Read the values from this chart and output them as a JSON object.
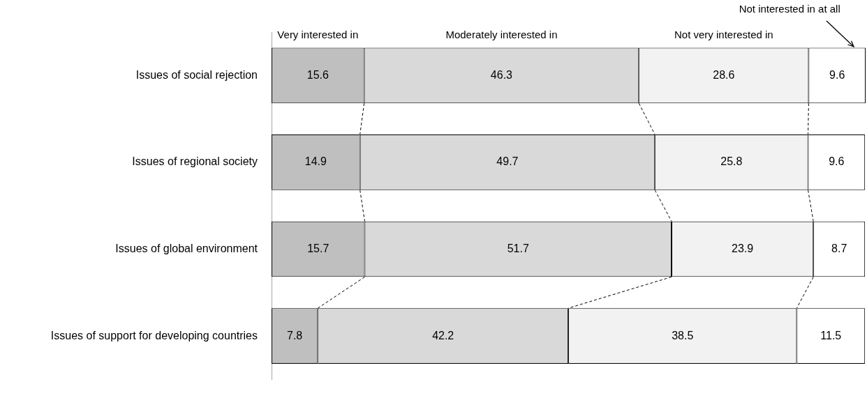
{
  "chart_data": {
    "type": "bar",
    "orientation": "horizontal",
    "stacked": true,
    "categories": [
      "Issues of social rejection",
      "Issues of regional society",
      "Issues of global environment",
      "Issues of support for developing countries"
    ],
    "series": [
      {
        "name": "Very interested in",
        "color": "#bfbfbf",
        "values": [
          15.6,
          14.9,
          15.7,
          7.8
        ]
      },
      {
        "name": "Moderately interested in",
        "color": "#d9d9d9",
        "values": [
          46.3,
          49.7,
          51.7,
          42.2
        ]
      },
      {
        "name": "Not very interested in",
        "color": "#f2f2f2",
        "values": [
          28.6,
          25.8,
          23.9,
          38.5
        ]
      },
      {
        "name": "Not interested in at all",
        "color": "#ffffff",
        "values": [
          9.6,
          9.6,
          8.7,
          11.5
        ]
      }
    ],
    "xlim": [
      0,
      100.1
    ],
    "tick_labels": "y",
    "data_labels": true,
    "legend": false,
    "grid": false
  }
}
